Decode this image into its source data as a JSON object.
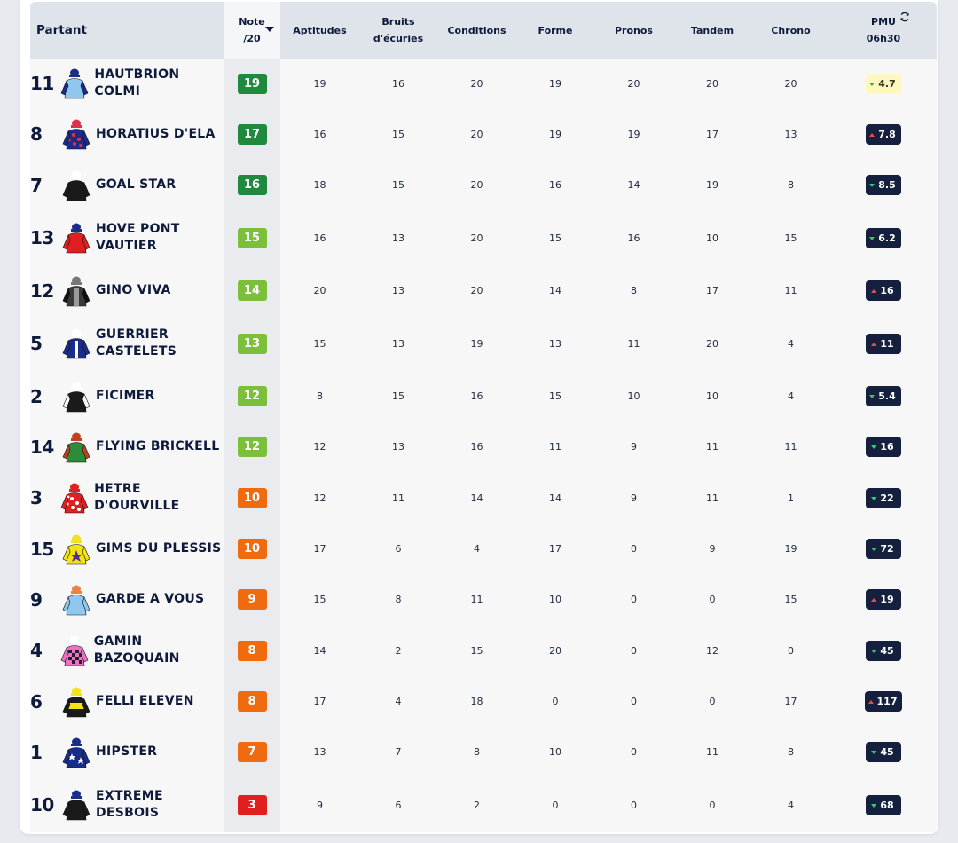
{
  "header": {
    "partant": "Partant",
    "note_line1": "Note",
    "note_line2": "/20",
    "aptitudes": "Aptitudes",
    "bruits_line1": "Bruits",
    "bruits_line2": "d'écuries",
    "conditions": "Conditions",
    "forme": "Forme",
    "pronos": "Pronos",
    "tandem": "Tandem",
    "chrono": "Chrono",
    "pmu_line1": "PMU",
    "pmu_line2": "06h30"
  },
  "colors": {
    "note_19_17_16": "#1f8a3e",
    "note_15_12": "#7cbf3a",
    "note_10_7": "#f06a10",
    "note_3": "#e01f1f",
    "odds_dark": "#14203d",
    "odds_light": "#fdf7c0"
  },
  "runners": [
    {
      "num": "11",
      "name_lines": [
        "HAUTBRION COLMI",
        ""
      ],
      "note": "19",
      "aptitudes": "19",
      "bruits": "16",
      "conditions": "20",
      "forme": "19",
      "pronos": "20",
      "tandem": "20",
      "chrono": "20",
      "odds": "4.7",
      "trend": "down",
      "odds_style": "light",
      "jacket": "light-blue-navy-cap"
    },
    {
      "num": "8",
      "name_lines": [
        "HORATIUS D'ELA",
        ""
      ],
      "note": "17",
      "aptitudes": "16",
      "bruits": "15",
      "conditions": "20",
      "forme": "19",
      "pronos": "19",
      "tandem": "17",
      "chrono": "13",
      "odds": "7.8",
      "trend": "up",
      "odds_style": "dark",
      "jacket": "navy-red-dots"
    },
    {
      "num": "7",
      "name_lines": [
        "GOAL STAR",
        ""
      ],
      "note": "16",
      "aptitudes": "18",
      "bruits": "15",
      "conditions": "20",
      "forme": "16",
      "pronos": "14",
      "tandem": "19",
      "chrono": "8",
      "odds": "8.5",
      "trend": "down",
      "odds_style": "dark",
      "jacket": "black"
    },
    {
      "num": "13",
      "name_lines": [
        "HOVE PONT",
        "VAUTIER"
      ],
      "note": "15",
      "aptitudes": "16",
      "bruits": "13",
      "conditions": "20",
      "forme": "15",
      "pronos": "16",
      "tandem": "10",
      "chrono": "15",
      "odds": "6.2",
      "trend": "down",
      "odds_style": "dark",
      "jacket": "red-navy-cap"
    },
    {
      "num": "12",
      "name_lines": [
        "GINO VIVA",
        ""
      ],
      "note": "14",
      "aptitudes": "20",
      "bruits": "13",
      "conditions": "20",
      "forme": "14",
      "pronos": "8",
      "tandem": "17",
      "chrono": "11",
      "odds": "16",
      "trend": "up",
      "odds_style": "dark",
      "jacket": "grey-black"
    },
    {
      "num": "5",
      "name_lines": [
        "GUERRIER",
        "CASTELETS"
      ],
      "note": "13",
      "aptitudes": "15",
      "bruits": "13",
      "conditions": "19",
      "forme": "13",
      "pronos": "11",
      "tandem": "20",
      "chrono": "4",
      "odds": "11",
      "trend": "up",
      "odds_style": "dark",
      "jacket": "navy-white-stripe"
    },
    {
      "num": "2",
      "name_lines": [
        "FICIMER",
        ""
      ],
      "note": "12",
      "aptitudes": "8",
      "bruits": "15",
      "conditions": "16",
      "forme": "15",
      "pronos": "10",
      "tandem": "10",
      "chrono": "4",
      "odds": "5.4",
      "trend": "down",
      "odds_style": "dark",
      "jacket": "black-white"
    },
    {
      "num": "14",
      "name_lines": [
        "FLYING BRICKELL",
        ""
      ],
      "note": "12",
      "aptitudes": "12",
      "bruits": "13",
      "conditions": "16",
      "forme": "11",
      "pronos": "9",
      "tandem": "11",
      "chrono": "11",
      "odds": "16",
      "trend": "down",
      "odds_style": "dark",
      "jacket": "green-red"
    },
    {
      "num": "3",
      "name_lines": [
        "HETRE D'OURVILLE",
        ""
      ],
      "note": "10",
      "aptitudes": "12",
      "bruits": "11",
      "conditions": "14",
      "forme": "14",
      "pronos": "9",
      "tandem": "11",
      "chrono": "1",
      "odds": "22",
      "trend": "down",
      "odds_style": "dark",
      "jacket": "red-white-dots"
    },
    {
      "num": "15",
      "name_lines": [
        "GIMS DU PLESSIS",
        ""
      ],
      "note": "10",
      "aptitudes": "17",
      "bruits": "6",
      "conditions": "4",
      "forme": "17",
      "pronos": "0",
      "tandem": "9",
      "chrono": "19",
      "odds": "72",
      "trend": "down",
      "odds_style": "dark",
      "jacket": "yellow-star"
    },
    {
      "num": "9",
      "name_lines": [
        "GARDE A VOUS",
        ""
      ],
      "note": "9",
      "aptitudes": "15",
      "bruits": "8",
      "conditions": "11",
      "forme": "10",
      "pronos": "0",
      "tandem": "0",
      "chrono": "15",
      "odds": "19",
      "trend": "up",
      "odds_style": "dark",
      "jacket": "light-blue-orange-cap"
    },
    {
      "num": "4",
      "name_lines": [
        "GAMIN BAZOQUAIN",
        ""
      ],
      "note": "8",
      "aptitudes": "14",
      "bruits": "2",
      "conditions": "15",
      "forme": "20",
      "pronos": "0",
      "tandem": "12",
      "chrono": "0",
      "odds": "45",
      "trend": "down",
      "odds_style": "dark",
      "jacket": "pink-check"
    },
    {
      "num": "6",
      "name_lines": [
        "FELLI ELEVEN",
        ""
      ],
      "note": "8",
      "aptitudes": "17",
      "bruits": "4",
      "conditions": "18",
      "forme": "0",
      "pronos": "0",
      "tandem": "0",
      "chrono": "17",
      "odds": "117",
      "trend": "up",
      "odds_style": "dark",
      "jacket": "yellow-black"
    },
    {
      "num": "1",
      "name_lines": [
        "HIPSTER",
        ""
      ],
      "note": "7",
      "aptitudes": "13",
      "bruits": "7",
      "conditions": "8",
      "forme": "10",
      "pronos": "0",
      "tandem": "11",
      "chrono": "8",
      "odds": "45",
      "trend": "down",
      "odds_style": "dark",
      "jacket": "navy-white-stars"
    },
    {
      "num": "10",
      "name_lines": [
        "EXTREME",
        "DESBOIS"
      ],
      "note": "3",
      "aptitudes": "9",
      "bruits": "6",
      "conditions": "2",
      "forme": "0",
      "pronos": "0",
      "tandem": "0",
      "chrono": "4",
      "odds": "68",
      "trend": "down",
      "odds_style": "dark",
      "jacket": "black-navy-cap"
    }
  ]
}
